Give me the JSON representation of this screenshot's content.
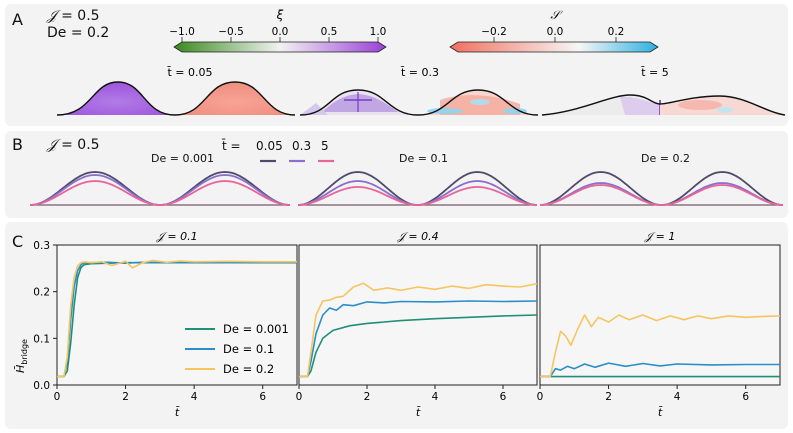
{
  "panelA": {
    "label": "A",
    "params": {
      "J_symbol": "𝒥",
      "J_eq": "= 0.5",
      "De_line": "De = 0.2"
    },
    "colorbar_xi": {
      "symbol": "ξ",
      "ticks": [
        "−1.0",
        "−0.5",
        "0.0",
        "0.5",
        "1.0"
      ],
      "low_color": "#3a8a1e",
      "mid_color": "#f2f2f2",
      "high_color": "#9b3fd6"
    },
    "colorbar_S": {
      "symbol": "𝒮",
      "ticks": [
        "−0.2",
        "0.0",
        "0.2"
      ],
      "low_color": "#f07060",
      "mid_color": "#f6f6f6",
      "high_color": "#2bb0e0"
    },
    "snapshots": [
      {
        "label": "t̄ = 0.05"
      },
      {
        "label": "t̄ = 0.3"
      },
      {
        "label": "t̄ = 5"
      }
    ]
  },
  "panelB": {
    "label": "B",
    "params": {
      "J_symbol": "𝒥",
      "J_eq": "= 0.5"
    },
    "legend": {
      "title": "t̄ = ",
      "entries": [
        {
          "label": "0.05",
          "color": "#4e4a6a"
        },
        {
          "label": "0.3",
          "color": "#8a6fd0"
        },
        {
          "label": "5",
          "color": "#e8659a"
        }
      ]
    },
    "subplots": [
      {
        "title": "De = 0.001"
      },
      {
        "title": "De = 0.1"
      },
      {
        "title": "De = 0.2"
      }
    ]
  },
  "panelC": {
    "label": "C",
    "ylabel": "H̄bridge",
    "ylabel_main": "H̄",
    "ylabel_sub": "bridge",
    "xlabel": "t̄",
    "legend": [
      {
        "label": "De = 0.001",
        "color": "#1f8f78"
      },
      {
        "label": "De = 0.1",
        "color": "#2a8fc7"
      },
      {
        "label": "De = 0.2",
        "color": "#f6c560"
      }
    ]
  },
  "chart_data": [
    {
      "type": "line",
      "title": "𝒥 = 0.1",
      "xlabel": "t̄",
      "ylabel": "H̄bridge",
      "xlim": [
        0,
        7
      ],
      "ylim": [
        0,
        0.3
      ],
      "xticks": [
        "0",
        "2",
        "4",
        "6"
      ],
      "yticks": [
        "0.0",
        "0.1",
        "0.2",
        "0.3"
      ],
      "series": [
        {
          "name": "De = 0.001",
          "color": "#1f8f78",
          "x": [
            0,
            0.2,
            0.3,
            0.4,
            0.5,
            0.6,
            0.7,
            0.8,
            1.0,
            1.5,
            2,
            3,
            4,
            5,
            6,
            7
          ],
          "y": [
            0.018,
            0.018,
            0.03,
            0.09,
            0.17,
            0.23,
            0.252,
            0.258,
            0.26,
            0.261,
            0.262,
            0.262,
            0.262,
            0.262,
            0.262,
            0.262
          ]
        },
        {
          "name": "De = 0.1",
          "color": "#2a8fc7",
          "x": [
            0,
            0.2,
            0.3,
            0.4,
            0.5,
            0.6,
            0.7,
            0.8,
            1.0,
            1.5,
            2,
            2.5,
            3,
            4,
            5,
            6,
            7
          ],
          "y": [
            0.018,
            0.018,
            0.05,
            0.14,
            0.21,
            0.245,
            0.258,
            0.262,
            0.262,
            0.263,
            0.261,
            0.263,
            0.262,
            0.263,
            0.262,
            0.263,
            0.263
          ]
        },
        {
          "name": "De = 0.2",
          "color": "#f6c560",
          "x": [
            0,
            0.2,
            0.3,
            0.4,
            0.5,
            0.6,
            0.7,
            0.8,
            1.0,
            1.3,
            1.6,
            2.0,
            2.2,
            2.5,
            2.8,
            3.2,
            3.6,
            4,
            5,
            6,
            7
          ],
          "y": [
            0.018,
            0.018,
            0.06,
            0.17,
            0.23,
            0.255,
            0.262,
            0.264,
            0.262,
            0.264,
            0.256,
            0.265,
            0.251,
            0.262,
            0.267,
            0.263,
            0.266,
            0.264,
            0.265,
            0.264,
            0.264
          ]
        }
      ]
    },
    {
      "type": "line",
      "title": "𝒥 = 0.4",
      "xlabel": "t̄",
      "xlim": [
        0,
        7
      ],
      "ylim": [
        0,
        0.3
      ],
      "xticks": [
        "0",
        "2",
        "4",
        "6"
      ],
      "series": [
        {
          "name": "De = 0.001",
          "color": "#1f8f78",
          "x": [
            0,
            0.25,
            0.35,
            0.5,
            0.7,
            1.0,
            1.5,
            2,
            3,
            4,
            5,
            6,
            7
          ],
          "y": [
            0.018,
            0.018,
            0.03,
            0.07,
            0.1,
            0.117,
            0.127,
            0.132,
            0.138,
            0.142,
            0.145,
            0.148,
            0.15
          ]
        },
        {
          "name": "De = 0.1",
          "color": "#2a8fc7",
          "x": [
            0,
            0.25,
            0.35,
            0.5,
            0.7,
            0.9,
            1.1,
            1.3,
            1.6,
            2.0,
            2.5,
            3,
            4,
            5,
            6,
            7
          ],
          "y": [
            0.018,
            0.018,
            0.05,
            0.11,
            0.15,
            0.165,
            0.16,
            0.172,
            0.17,
            0.178,
            0.176,
            0.179,
            0.178,
            0.18,
            0.179,
            0.18
          ]
        },
        {
          "name": "De = 0.2",
          "color": "#f6c560",
          "x": [
            0,
            0.25,
            0.35,
            0.5,
            0.7,
            0.9,
            1.1,
            1.3,
            1.6,
            1.9,
            2.2,
            2.6,
            3.0,
            3.5,
            4,
            4.5,
            5,
            5.5,
            6,
            6.5,
            7
          ],
          "y": [
            0.018,
            0.018,
            0.07,
            0.15,
            0.18,
            0.182,
            0.188,
            0.19,
            0.21,
            0.218,
            0.203,
            0.208,
            0.203,
            0.21,
            0.205,
            0.212,
            0.207,
            0.215,
            0.212,
            0.21,
            0.217
          ]
        }
      ]
    },
    {
      "type": "line",
      "title": "𝒥 = 1",
      "xlabel": "t̄",
      "xlim": [
        0,
        7
      ],
      "ylim": [
        0,
        0.3
      ],
      "xticks": [
        "0",
        "2",
        "4",
        "6"
      ],
      "series": [
        {
          "name": "De = 0.001",
          "color": "#1f8f78",
          "x": [
            0,
            0.3,
            0.4,
            1,
            2,
            3,
            4,
            5,
            6,
            7
          ],
          "y": [
            0.018,
            0.018,
            0.018,
            0.018,
            0.018,
            0.018,
            0.018,
            0.018,
            0.018,
            0.018
          ]
        },
        {
          "name": "De = 0.1",
          "color": "#2a8fc7",
          "x": [
            0,
            0.3,
            0.45,
            0.6,
            0.8,
            1.0,
            1.3,
            1.6,
            2.0,
            2.5,
            3,
            3.5,
            4,
            5,
            6,
            7
          ],
          "y": [
            0.018,
            0.018,
            0.035,
            0.032,
            0.04,
            0.035,
            0.045,
            0.038,
            0.047,
            0.04,
            0.046,
            0.041,
            0.045,
            0.043,
            0.044,
            0.044
          ]
        },
        {
          "name": "De = 0.2",
          "color": "#f6c560",
          "x": [
            0,
            0.3,
            0.45,
            0.6,
            0.75,
            0.9,
            1.1,
            1.3,
            1.5,
            1.7,
            2.0,
            2.3,
            2.6,
            3.0,
            3.4,
            3.8,
            4.2,
            4.6,
            5,
            5.5,
            6,
            6.5,
            7
          ],
          "y": [
            0.018,
            0.018,
            0.07,
            0.115,
            0.105,
            0.085,
            0.12,
            0.15,
            0.125,
            0.145,
            0.135,
            0.15,
            0.14,
            0.15,
            0.138,
            0.148,
            0.14,
            0.148,
            0.142,
            0.148,
            0.145,
            0.147,
            0.148
          ]
        }
      ]
    }
  ]
}
